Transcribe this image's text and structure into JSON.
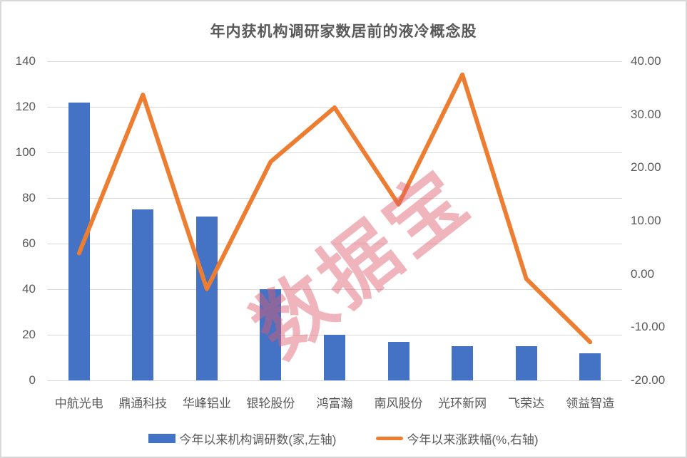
{
  "chart_data": {
    "type": "bar+line combo",
    "title": "年内获机构调研家数居前的液冷概念股",
    "categories": [
      "中航光电",
      "鼎通科技",
      "华峰铝业",
      "银轮股份",
      "鸿富瀚",
      "南风股份",
      "光环新网",
      "飞荣达",
      "领益智造"
    ],
    "series": [
      {
        "name": "今年以来机构调研数(家,左轴)",
        "type": "bar",
        "axis": "left",
        "color": "#4472C4",
        "values": [
          122,
          75,
          72,
          40,
          20,
          17,
          15,
          15,
          12
        ]
      },
      {
        "name": "今年以来涨跌幅(%,右轴)",
        "type": "line",
        "axis": "right",
        "color": "#ED7D31",
        "values": [
          3.9,
          33.7,
          -2.8,
          21.1,
          31.3,
          13.1,
          37.5,
          -0.9,
          -12.8
        ]
      }
    ],
    "left_axis": {
      "min": 0,
      "max": 140,
      "step": 20,
      "tick_labels": [
        "0",
        "20",
        "40",
        "60",
        "80",
        "100",
        "120",
        "140"
      ]
    },
    "right_axis": {
      "min": -20,
      "max": 40,
      "step": 10,
      "tick_labels": [
        "40.00",
        "30.00",
        "20.00",
        "10.00",
        "0.00",
        "-10.00",
        "-20.00"
      ]
    },
    "grid": true,
    "legend_position": "bottom"
  },
  "watermark": {
    "text": "数据宝",
    "color": "#E05A6E"
  },
  "colors": {
    "bar": "#4472C4",
    "line": "#ED7D31",
    "text": "#595959",
    "gridline": "#D9D9D9",
    "border": "#D9D9D9",
    "background": "#FFFFFF"
  }
}
